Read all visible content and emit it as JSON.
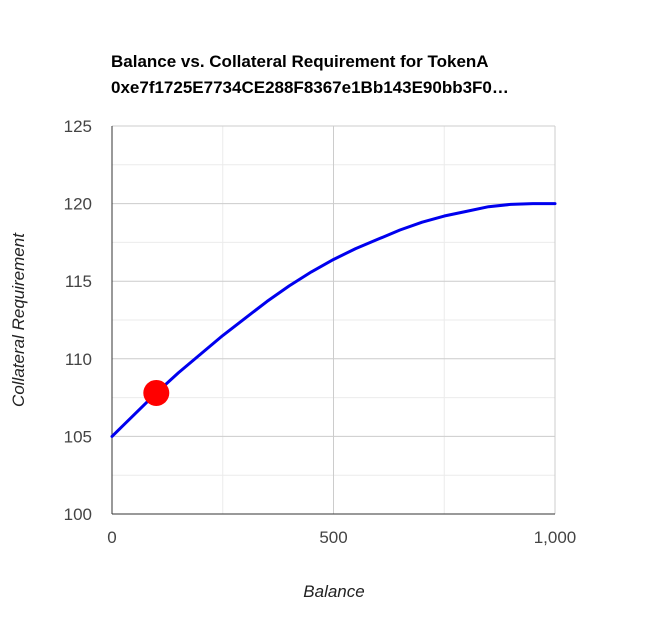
{
  "chart_data": {
    "type": "line",
    "title": "Balance vs. Collateral Requirement for TokenA",
    "subtitle": "0xe7f1725E7734CE288F8367e1Bb143E90bb3F0…",
    "xlabel": "Balance",
    "ylabel": "Collateral Requirement",
    "xlim": [
      0,
      1000
    ],
    "ylim": [
      100,
      125
    ],
    "x_ticks": [
      0,
      500,
      1000
    ],
    "x_tick_labels": [
      "0",
      "500",
      "1,000"
    ],
    "y_ticks": [
      100,
      105,
      110,
      115,
      120,
      125
    ],
    "y_tick_labels": [
      "100",
      "105",
      "110",
      "115",
      "120",
      "125"
    ],
    "grid": true,
    "series": [
      {
        "color": "#0000ee",
        "x": [
          0,
          50,
          100,
          150,
          200,
          250,
          300,
          350,
          400,
          450,
          500,
          550,
          600,
          650,
          700,
          750,
          800,
          850,
          900,
          950,
          1000
        ],
        "y": [
          105.0,
          106.4,
          107.8,
          109.1,
          110.3,
          111.5,
          112.6,
          113.7,
          114.7,
          115.6,
          116.4,
          117.1,
          117.7,
          118.3,
          118.8,
          119.2,
          119.5,
          119.8,
          119.95,
          120.0,
          120.0
        ]
      }
    ],
    "highlight_point": {
      "x": 100,
      "y": 107.8,
      "color": "#ff0000"
    }
  }
}
